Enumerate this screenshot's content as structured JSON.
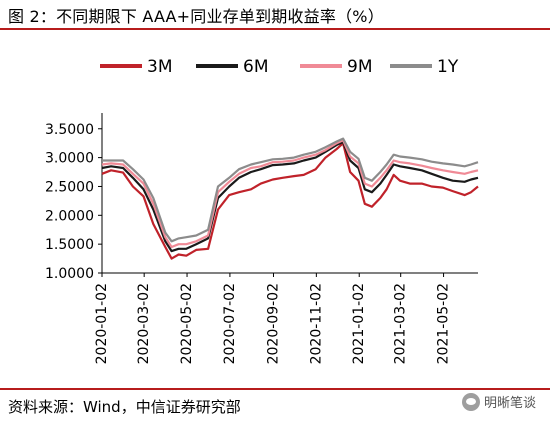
{
  "header": {
    "title": "图 2：不同期限下 AAA+同业存单到期收益率（%）"
  },
  "footer": {
    "source": "资料来源：Wind，中信证券研究部",
    "brand": "明晰笔谈"
  },
  "chart_data": {
    "type": "line",
    "x_ticks": [
      "2020-01-02",
      "2020-03-02",
      "2020-05-02",
      "2020-07-02",
      "2020-09-02",
      "2020-11-02",
      "2021-01-02",
      "2021-03-02",
      "2021-05-02"
    ],
    "y_ticks": [
      "1.0000",
      "1.5000",
      "2.0000",
      "2.5000",
      "3.0000",
      "3.5000"
    ],
    "ylim": [
      1.0,
      3.6
    ],
    "xlim": [
      "2020-01-02",
      "2021-06-20"
    ],
    "legend_position": "top",
    "grid": false,
    "series": [
      {
        "name": "3M",
        "color": "#c0222a",
        "points": [
          [
            "2020-01-02",
            2.72
          ],
          [
            "2020-01-15",
            2.78
          ],
          [
            "2020-02-01",
            2.74
          ],
          [
            "2020-02-15",
            2.5
          ],
          [
            "2020-03-01",
            2.33
          ],
          [
            "2020-03-15",
            1.85
          ],
          [
            "2020-04-01",
            1.45
          ],
          [
            "2020-04-10",
            1.25
          ],
          [
            "2020-04-20",
            1.32
          ],
          [
            "2020-05-01",
            1.3
          ],
          [
            "2020-05-15",
            1.4
          ],
          [
            "2020-06-01",
            1.42
          ],
          [
            "2020-06-15",
            2.1
          ],
          [
            "2020-07-01",
            2.35
          ],
          [
            "2020-07-15",
            2.4
          ],
          [
            "2020-08-01",
            2.45
          ],
          [
            "2020-08-15",
            2.55
          ],
          [
            "2020-09-01",
            2.62
          ],
          [
            "2020-09-15",
            2.65
          ],
          [
            "2020-10-01",
            2.68
          ],
          [
            "2020-10-15",
            2.7
          ],
          [
            "2020-11-01",
            2.8
          ],
          [
            "2020-11-15",
            3.0
          ],
          [
            "2020-12-01",
            3.15
          ],
          [
            "2020-12-10",
            3.25
          ],
          [
            "2020-12-20",
            2.75
          ],
          [
            "2021-01-01",
            2.6
          ],
          [
            "2021-01-10",
            2.2
          ],
          [
            "2021-01-20",
            2.15
          ],
          [
            "2021-02-01",
            2.3
          ],
          [
            "2021-02-10",
            2.45
          ],
          [
            "2021-02-20",
            2.7
          ],
          [
            "2021-03-01",
            2.6
          ],
          [
            "2021-03-15",
            2.55
          ],
          [
            "2021-04-01",
            2.55
          ],
          [
            "2021-04-15",
            2.5
          ],
          [
            "2021-05-01",
            2.48
          ],
          [
            "2021-05-15",
            2.42
          ],
          [
            "2021-06-01",
            2.35
          ],
          [
            "2021-06-10",
            2.4
          ],
          [
            "2021-06-20",
            2.5
          ]
        ]
      },
      {
        "name": "6M",
        "color": "#1a1a1a",
        "points": [
          [
            "2020-01-02",
            2.82
          ],
          [
            "2020-01-15",
            2.85
          ],
          [
            "2020-02-01",
            2.82
          ],
          [
            "2020-02-15",
            2.65
          ],
          [
            "2020-03-01",
            2.45
          ],
          [
            "2020-03-15",
            2.1
          ],
          [
            "2020-04-01",
            1.55
          ],
          [
            "2020-04-10",
            1.38
          ],
          [
            "2020-04-20",
            1.42
          ],
          [
            "2020-05-01",
            1.42
          ],
          [
            "2020-05-15",
            1.5
          ],
          [
            "2020-06-01",
            1.6
          ],
          [
            "2020-06-15",
            2.3
          ],
          [
            "2020-07-01",
            2.5
          ],
          [
            "2020-07-15",
            2.65
          ],
          [
            "2020-08-01",
            2.75
          ],
          [
            "2020-08-15",
            2.8
          ],
          [
            "2020-09-01",
            2.87
          ],
          [
            "2020-09-15",
            2.88
          ],
          [
            "2020-10-01",
            2.9
          ],
          [
            "2020-10-15",
            2.95
          ],
          [
            "2020-11-01",
            3.0
          ],
          [
            "2020-11-15",
            3.1
          ],
          [
            "2020-12-01",
            3.22
          ],
          [
            "2020-12-10",
            3.27
          ],
          [
            "2020-12-20",
            2.95
          ],
          [
            "2021-01-01",
            2.82
          ],
          [
            "2021-01-10",
            2.45
          ],
          [
            "2021-01-20",
            2.4
          ],
          [
            "2021-02-01",
            2.55
          ],
          [
            "2021-02-10",
            2.7
          ],
          [
            "2021-02-20",
            2.88
          ],
          [
            "2021-03-01",
            2.85
          ],
          [
            "2021-03-15",
            2.82
          ],
          [
            "2021-04-01",
            2.78
          ],
          [
            "2021-04-15",
            2.72
          ],
          [
            "2021-05-01",
            2.65
          ],
          [
            "2021-05-15",
            2.6
          ],
          [
            "2021-06-01",
            2.58
          ],
          [
            "2021-06-10",
            2.62
          ],
          [
            "2021-06-20",
            2.65
          ]
        ]
      },
      {
        "name": "9M",
        "color": "#f08a96",
        "points": [
          [
            "2020-01-02",
            2.88
          ],
          [
            "2020-01-15",
            2.9
          ],
          [
            "2020-02-01",
            2.88
          ],
          [
            "2020-02-15",
            2.72
          ],
          [
            "2020-03-01",
            2.55
          ],
          [
            "2020-03-15",
            2.2
          ],
          [
            "2020-04-01",
            1.62
          ],
          [
            "2020-04-10",
            1.45
          ],
          [
            "2020-04-20",
            1.5
          ],
          [
            "2020-05-01",
            1.5
          ],
          [
            "2020-05-15",
            1.55
          ],
          [
            "2020-06-01",
            1.65
          ],
          [
            "2020-06-15",
            2.4
          ],
          [
            "2020-07-01",
            2.58
          ],
          [
            "2020-07-15",
            2.72
          ],
          [
            "2020-08-01",
            2.82
          ],
          [
            "2020-08-15",
            2.85
          ],
          [
            "2020-09-01",
            2.92
          ],
          [
            "2020-09-15",
            2.93
          ],
          [
            "2020-10-01",
            2.95
          ],
          [
            "2020-10-15",
            3.0
          ],
          [
            "2020-11-01",
            3.05
          ],
          [
            "2020-11-15",
            3.13
          ],
          [
            "2020-12-01",
            3.25
          ],
          [
            "2020-12-10",
            3.3
          ],
          [
            "2020-12-20",
            3.02
          ],
          [
            "2021-01-01",
            2.9
          ],
          [
            "2021-01-10",
            2.55
          ],
          [
            "2021-01-20",
            2.5
          ],
          [
            "2021-02-01",
            2.65
          ],
          [
            "2021-02-10",
            2.78
          ],
          [
            "2021-02-20",
            2.95
          ],
          [
            "2021-03-01",
            2.92
          ],
          [
            "2021-03-15",
            2.9
          ],
          [
            "2021-04-01",
            2.86
          ],
          [
            "2021-04-15",
            2.82
          ],
          [
            "2021-05-01",
            2.78
          ],
          [
            "2021-05-15",
            2.75
          ],
          [
            "2021-06-01",
            2.72
          ],
          [
            "2021-06-10",
            2.75
          ],
          [
            "2021-06-20",
            2.78
          ]
        ]
      },
      {
        "name": "1Y",
        "color": "#8c8c8c",
        "points": [
          [
            "2020-01-02",
            2.95
          ],
          [
            "2020-01-15",
            2.95
          ],
          [
            "2020-02-01",
            2.95
          ],
          [
            "2020-02-15",
            2.8
          ],
          [
            "2020-03-01",
            2.62
          ],
          [
            "2020-03-15",
            2.3
          ],
          [
            "2020-04-01",
            1.7
          ],
          [
            "2020-04-10",
            1.55
          ],
          [
            "2020-04-20",
            1.6
          ],
          [
            "2020-05-01",
            1.62
          ],
          [
            "2020-05-15",
            1.65
          ],
          [
            "2020-06-01",
            1.75
          ],
          [
            "2020-06-15",
            2.5
          ],
          [
            "2020-07-01",
            2.65
          ],
          [
            "2020-07-15",
            2.8
          ],
          [
            "2020-08-01",
            2.88
          ],
          [
            "2020-08-15",
            2.92
          ],
          [
            "2020-09-01",
            2.97
          ],
          [
            "2020-09-15",
            2.98
          ],
          [
            "2020-10-01",
            3.0
          ],
          [
            "2020-10-15",
            3.05
          ],
          [
            "2020-11-01",
            3.1
          ],
          [
            "2020-11-15",
            3.18
          ],
          [
            "2020-12-01",
            3.28
          ],
          [
            "2020-12-10",
            3.33
          ],
          [
            "2020-12-20",
            3.1
          ],
          [
            "2021-01-01",
            2.98
          ],
          [
            "2021-01-10",
            2.65
          ],
          [
            "2021-01-20",
            2.6
          ],
          [
            "2021-02-01",
            2.75
          ],
          [
            "2021-02-10",
            2.88
          ],
          [
            "2021-02-20",
            3.05
          ],
          [
            "2021-03-01",
            3.02
          ],
          [
            "2021-03-15",
            3.0
          ],
          [
            "2021-04-01",
            2.97
          ],
          [
            "2021-04-15",
            2.93
          ],
          [
            "2021-05-01",
            2.9
          ],
          [
            "2021-05-15",
            2.88
          ],
          [
            "2021-06-01",
            2.85
          ],
          [
            "2021-06-10",
            2.88
          ],
          [
            "2021-06-20",
            2.92
          ]
        ]
      }
    ]
  }
}
